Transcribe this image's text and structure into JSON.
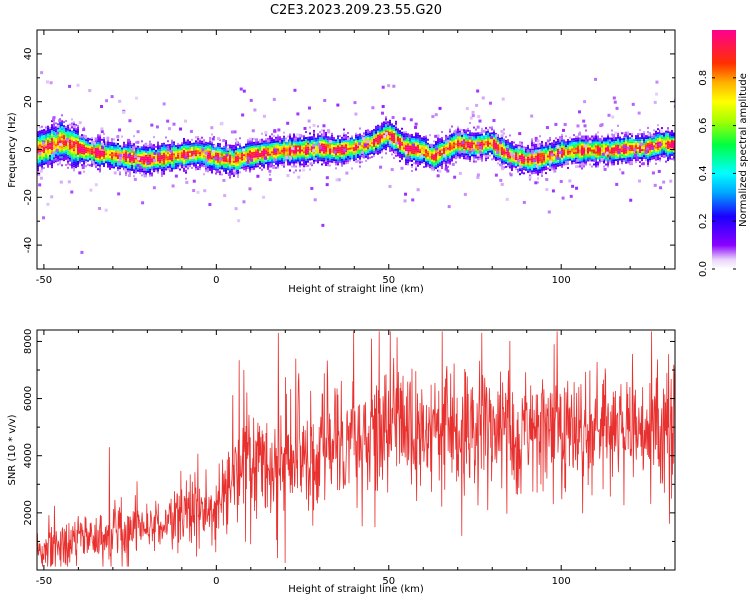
{
  "title": "C2E3.2023.209.23.55.G20",
  "chart_data": [
    {
      "type": "heatmap",
      "xlabel": "Height of straight line (km)",
      "ylabel": "Frequency (Hz)",
      "xlim": [
        -52,
        133
      ],
      "ylim": [
        -50,
        50
      ],
      "xticks": [
        -50,
        0,
        50,
        100
      ],
      "yticks": [
        -40,
        -20,
        0,
        20,
        40
      ],
      "colorbar": {
        "label": "Normalized spectral amplitude",
        "range": [
          0,
          1
        ],
        "ticks": [
          "0.0",
          "0.2",
          "0.4",
          "0.6",
          "0.8"
        ],
        "colormap": "rainbow (white-violet-blue-cyan-green-yellow-orange-red-magenta)"
      },
      "ridge_frequency": {
        "x": [
          -52,
          -48,
          -45,
          -40,
          -35,
          -30,
          -25,
          -20,
          -15,
          -10,
          -5,
          0,
          5,
          10,
          15,
          20,
          25,
          30,
          35,
          40,
          45,
          50,
          55,
          60,
          63,
          65,
          70,
          75,
          80,
          85,
          90,
          95,
          100,
          105,
          110,
          115,
          120,
          125,
          130,
          133
        ],
        "y": [
          0,
          2,
          4,
          1,
          -1,
          -2,
          -3,
          -4,
          -3,
          -2,
          -1,
          -3,
          -4,
          -2,
          -1,
          0,
          0,
          1,
          0,
          1,
          3,
          7,
          1,
          0,
          -3,
          -1,
          3,
          2,
          3,
          -2,
          -4,
          -3,
          -1,
          0,
          0,
          0,
          1,
          1,
          3,
          2
        ]
      }
    },
    {
      "type": "line",
      "xlabel": "Height of straight line (km)",
      "ylabel": "SNR (10 * v/v)",
      "xlim": [
        -52,
        133
      ],
      "ylim": [
        0,
        8400
      ],
      "xticks": [
        -50,
        0,
        50,
        100
      ],
      "yticks": [
        2000,
        4000,
        6000,
        8000
      ],
      "series": [
        {
          "color": "#e8312f",
          "trend": {
            "x": [
              -52,
              -45,
              -40,
              -30,
              -20,
              -10,
              0,
              5,
              10,
              15,
              20,
              30,
              40,
              50,
              60,
              70,
              80,
              90,
              100,
              110,
              120,
              133
            ],
            "y": [
              700,
              900,
              1100,
              1300,
              1600,
              1900,
              2300,
              3300,
              3700,
              3800,
              4000,
              4300,
              4600,
              4900,
              5100,
              5100,
              5000,
              4900,
              4900,
              5000,
              5000,
              5000
            ]
          },
          "spread": {
            "x": [
              -52,
              0,
              10,
              20,
              40,
              133
            ],
            "y": [
              500,
              700,
              1200,
              1200,
              1300,
              1300
            ]
          },
          "peaks": [
            {
              "x": 18,
              "y": 8300
            },
            {
              "x": 45,
              "y": 8100
            },
            {
              "x": 77,
              "y": 8300
            },
            {
              "x": 98,
              "y": 7900
            },
            {
              "x": 8,
              "y": 7000
            },
            {
              "x": -23,
              "y": 3100
            },
            {
              "x": -31,
              "y": 4300
            }
          ],
          "troughs": [
            {
              "x": 20,
              "y": 250
            },
            {
              "x": 46,
              "y": 1500
            },
            {
              "x": 10,
              "y": 900
            },
            {
              "x": 132,
              "y": 2500
            }
          ]
        }
      ]
    }
  ]
}
